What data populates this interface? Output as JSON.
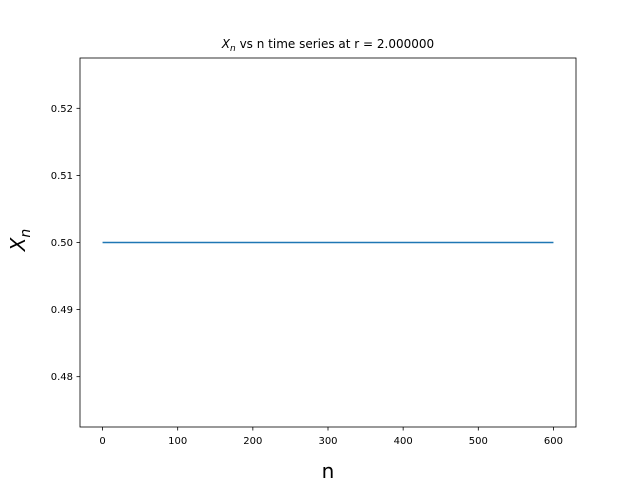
{
  "chart_data": {
    "type": "line",
    "title_var": "X",
    "title_sub": "n",
    "title_rest": " vs n time series at r = 2.000000",
    "xlabel": "n",
    "ylabel_var": "X",
    "ylabel_sub": "n",
    "xlim": [
      -30,
      630
    ],
    "ylim": [
      0.4725,
      0.5275
    ],
    "xticks": [
      0,
      100,
      200,
      300,
      400,
      500,
      600
    ],
    "yticks": [
      0.48,
      0.49,
      0.5,
      0.51,
      0.52
    ],
    "ytick_labels": [
      "0.48",
      "0.49",
      "0.50",
      "0.51",
      "0.52"
    ],
    "grid": false,
    "series": [
      {
        "color": "#1f77b4",
        "x": [
          0,
          600
        ],
        "y": [
          0.5,
          0.5
        ]
      }
    ]
  }
}
